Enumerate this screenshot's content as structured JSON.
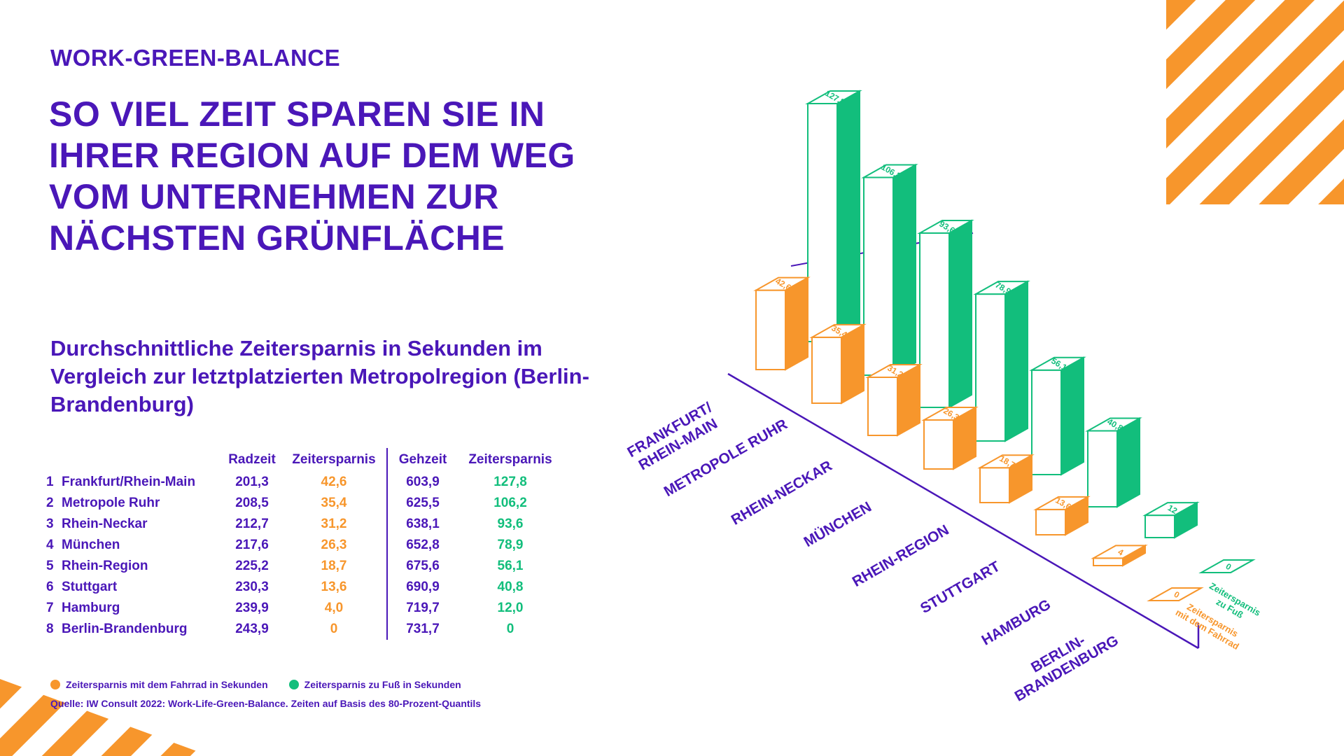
{
  "header": {
    "kicker": "WORK-GREEN-BALANCE",
    "headline": "SO VIEL ZEIT SPAREN SIE IN IHRER REGION AUF DEM WEG VOM UNTERNEHMEN ZUR NÄCHSTEN GRÜNFLÄCHE",
    "subhead": "Durchschnittliche Zeitersparnis in Sekunden im Vergleich zur letztplatzierten Metropolregion (Berlin-Brandenburg)"
  },
  "colors": {
    "primary": "#4a17b8",
    "orange": "#f7962c",
    "green": "#12be7c",
    "background": "#ffffff"
  },
  "table": {
    "columns": [
      "Radzeit",
      "Zeitersparnis",
      "Gehzeit",
      "Zeitersparnis"
    ],
    "rows": [
      {
        "rank": "1",
        "name": "Frankfurt/Rhein-Main",
        "radzeit": "201,3",
        "zeit_rad": "42,6",
        "gehzeit": "603,9",
        "zeit_fuss": "127,8"
      },
      {
        "rank": "2",
        "name": "Metropole Ruhr",
        "radzeit": "208,5",
        "zeit_rad": "35,4",
        "gehzeit": "625,5",
        "zeit_fuss": "106,2"
      },
      {
        "rank": "3",
        "name": "Rhein-Neckar",
        "radzeit": "212,7",
        "zeit_rad": "31,2",
        "gehzeit": "638,1",
        "zeit_fuss": "93,6"
      },
      {
        "rank": "4",
        "name": "München",
        "radzeit": "217,6",
        "zeit_rad": "26,3",
        "gehzeit": "652,8",
        "zeit_fuss": "78,9"
      },
      {
        "rank": "5",
        "name": "Rhein-Region",
        "radzeit": "225,2",
        "zeit_rad": "18,7",
        "gehzeit": "675,6",
        "zeit_fuss": "56,1"
      },
      {
        "rank": "6",
        "name": "Stuttgart",
        "radzeit": "230,3",
        "zeit_rad": "13,6",
        "gehzeit": "690,9",
        "zeit_fuss": "40,8"
      },
      {
        "rank": "7",
        "name": "Hamburg",
        "radzeit": "239,9",
        "zeit_rad": "4,0",
        "gehzeit": "719,7",
        "zeit_fuss": "12,0"
      },
      {
        "rank": "8",
        "name": "Berlin-Brandenburg",
        "radzeit": "243,9",
        "zeit_rad": "0",
        "gehzeit": "731,7",
        "zeit_fuss": "0"
      }
    ]
  },
  "legend": {
    "fahrrad": "Zeitersparnis mit dem Fahrrad in Sekunden",
    "fuss": "Zeitersparnis zu Fuß in Sekunden"
  },
  "source": "Quelle: IW Consult 2022: Work-Life-Green-Balance. Zeiten auf Basis des 80-Prozent-Quantils",
  "chart_data": {
    "type": "bar",
    "title": "",
    "categories": [
      "FRANKFURT/ RHEIN-MAIN",
      "METROPOLE RUHR",
      "RHEIN-NECKAR",
      "MÜNCHEN",
      "RHEIN-REGION",
      "STUTTGART",
      "HAMBURG",
      "BERLIN- BRANDENBURG"
    ],
    "series": [
      {
        "name": "Zeitersparnis mit dem Fahrrad",
        "color": "#f7962c",
        "values": [
          42.6,
          35.4,
          31.2,
          26.3,
          18.7,
          13.6,
          4,
          0
        ],
        "labels": [
          "42,6",
          "35,4",
          "31,2",
          "26,3",
          "18,7",
          "13,6",
          "4",
          "0"
        ]
      },
      {
        "name": "Zeitersparnis zu Fuß",
        "color": "#12be7c",
        "values": [
          127.8,
          106.2,
          93.6,
          78.9,
          56.1,
          40.8,
          12,
          0
        ],
        "labels": [
          "127,8",
          "106,2",
          "93,6",
          "78,9",
          "56,1",
          "40,8",
          "12",
          "0"
        ]
      }
    ],
    "legend": [
      {
        "text_lines": [
          "Zeitersparnis",
          "zu Fuß"
        ],
        "color": "#12be7c"
      },
      {
        "text_lines": [
          "Zeitersparnis",
          "mit dem Fahrrad"
        ],
        "color": "#f7962c"
      }
    ],
    "ylim": [
      0,
      130
    ]
  }
}
